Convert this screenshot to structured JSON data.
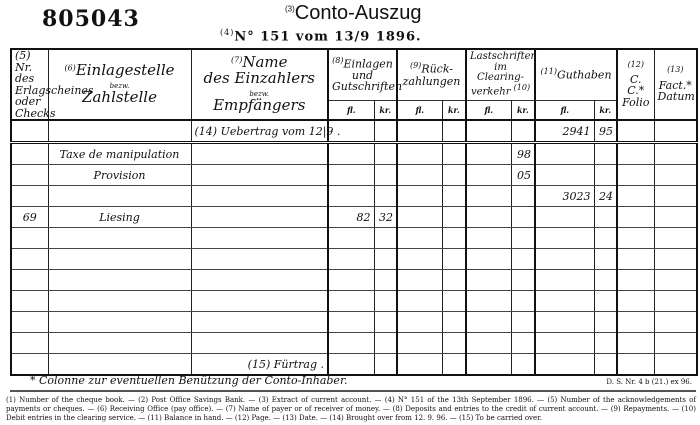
{
  "document_number": "805043",
  "title": {
    "marker": "(3)",
    "text": "Conto-Auszug"
  },
  "subtitle": {
    "marker": "(4)",
    "text": "N° 151 vom 13/9 1896."
  },
  "headers": {
    "col5": {
      "marker": "(5)",
      "text": "Nr. des Erlagscheines oder Checks"
    },
    "col6": {
      "marker": "(6)",
      "line1": "Einlagestelle",
      "line2": "bezw.",
      "line3": "Zahlstelle"
    },
    "col7": {
      "marker": "(7)",
      "line1": "Name",
      "line2": "des Einzahlers",
      "line3": "bezw.",
      "line4": "Empfängers"
    },
    "col8": {
      "marker": "(8)",
      "text": "Einlagen und Gutschriften"
    },
    "col9": {
      "marker": "(9)",
      "text": "Rück-zahlungen"
    },
    "col10": {
      "marker": "(10)",
      "text": "Lastschriften im Clearing-verkehr"
    },
    "col11": {
      "marker": "(11)",
      "text": "Guthaben"
    },
    "col12": {
      "marker": "(12)",
      "text": "C. C.*",
      "sub": "Folio"
    },
    "col13": {
      "marker": "(13)",
      "text": "Fact.*",
      "sub": "Datum"
    },
    "fl": "fl.",
    "kr": "kr."
  },
  "rows": [
    {
      "nr": "",
      "zahlstelle": "",
      "name": "(14) Uebertrag vom 12|9  .",
      "ein_fl": "",
      "ein_kr": "",
      "rz_fl": "",
      "rz_kr": "",
      "cl_fl": "",
      "cl_kr": "",
      "gh_fl": "2941",
      "gh_kr": "95",
      "folio": "",
      "datum": ""
    },
    {
      "nr": "",
      "zahlstelle": "Taxe de manipulation",
      "name": "",
      "ein_fl": "",
      "ein_kr": "",
      "rz_fl": "",
      "rz_kr": "",
      "cl_fl": "",
      "cl_kr": "98",
      "gh_fl": "",
      "gh_kr": "",
      "folio": "",
      "datum": ""
    },
    {
      "nr": "",
      "zahlstelle": "Provision",
      "name": "",
      "ein_fl": "",
      "ein_kr": "",
      "rz_fl": "",
      "rz_kr": "",
      "cl_fl": "",
      "cl_kr": "05",
      "gh_fl": "",
      "gh_kr": "",
      "folio": "",
      "datum": ""
    },
    {
      "nr": "",
      "zahlstelle": "",
      "name": "",
      "ein_fl": "",
      "ein_kr": "",
      "rz_fl": "",
      "rz_kr": "",
      "cl_fl": "",
      "cl_kr": "",
      "gh_fl": "3023",
      "gh_kr": "24",
      "folio": "",
      "datum": ""
    },
    {
      "nr": "69",
      "zahlstelle": "Liesing",
      "name": "",
      "ein_fl": "82",
      "ein_kr": "32",
      "rz_fl": "",
      "rz_kr": "",
      "cl_fl": "",
      "cl_kr": "",
      "gh_fl": "",
      "gh_kr": "",
      "folio": "",
      "datum": ""
    },
    {
      "nr": "",
      "zahlstelle": "",
      "name": "",
      "ein_fl": "",
      "ein_kr": "",
      "rz_fl": "",
      "rz_kr": "",
      "cl_fl": "",
      "cl_kr": "",
      "gh_fl": "",
      "gh_kr": "",
      "folio": "",
      "datum": ""
    },
    {
      "nr": "",
      "zahlstelle": "",
      "name": "",
      "ein_fl": "",
      "ein_kr": "",
      "rz_fl": "",
      "rz_kr": "",
      "cl_fl": "",
      "cl_kr": "",
      "gh_fl": "",
      "gh_kr": "",
      "folio": "",
      "datum": ""
    },
    {
      "nr": "",
      "zahlstelle": "",
      "name": "",
      "ein_fl": "",
      "ein_kr": "",
      "rz_fl": "",
      "rz_kr": "",
      "cl_fl": "",
      "cl_kr": "",
      "gh_fl": "",
      "gh_kr": "",
      "folio": "",
      "datum": ""
    },
    {
      "nr": "",
      "zahlstelle": "",
      "name": "",
      "ein_fl": "",
      "ein_kr": "",
      "rz_fl": "",
      "rz_kr": "",
      "cl_fl": "",
      "cl_kr": "",
      "gh_fl": "",
      "gh_kr": "",
      "folio": "",
      "datum": ""
    },
    {
      "nr": "",
      "zahlstelle": "",
      "name": "",
      "ein_fl": "",
      "ein_kr": "",
      "rz_fl": "",
      "rz_kr": "",
      "cl_fl": "",
      "cl_kr": "",
      "gh_fl": "",
      "gh_kr": "",
      "folio": "",
      "datum": ""
    },
    {
      "nr": "",
      "zahlstelle": "",
      "name": "",
      "ein_fl": "",
      "ein_kr": "",
      "rz_fl": "",
      "rz_kr": "",
      "cl_fl": "",
      "cl_kr": "",
      "gh_fl": "",
      "gh_kr": "",
      "folio": "",
      "datum": ""
    },
    {
      "nr": "",
      "zahlstelle": "",
      "name": "(15) Fürtrag  .",
      "ein_fl": "",
      "ein_kr": "",
      "rz_fl": "",
      "rz_kr": "",
      "cl_fl": "",
      "cl_kr": "",
      "gh_fl": "",
      "gh_kr": "",
      "folio": "",
      "datum": ""
    }
  ],
  "footnote": "* Colonne zur eventuellen Benützung der Conto-Inhaber.",
  "form_code": "D. S. Nr. 4 b (21.) ex 96.",
  "legend": "(1) Number of the cheque book. — (2) Post Office Savings Bank. — (3) Extract of current account. — (4) N° 151 of the 13th September 1896. — (5) Number of the acknowledgements of payments or cheques. — (6) Receiving Office (pay office). — (7) Name of payer or of receiver of money. — (8) Deposits and entries to the credit of current account. — (9) Repayments. — (10) Debit entries in the clearing service. — (11) Balance in hand. — (12) Page. — (13) Date. — (14) Brought over from 12. 9. 96. — (15) To be carried over."
}
